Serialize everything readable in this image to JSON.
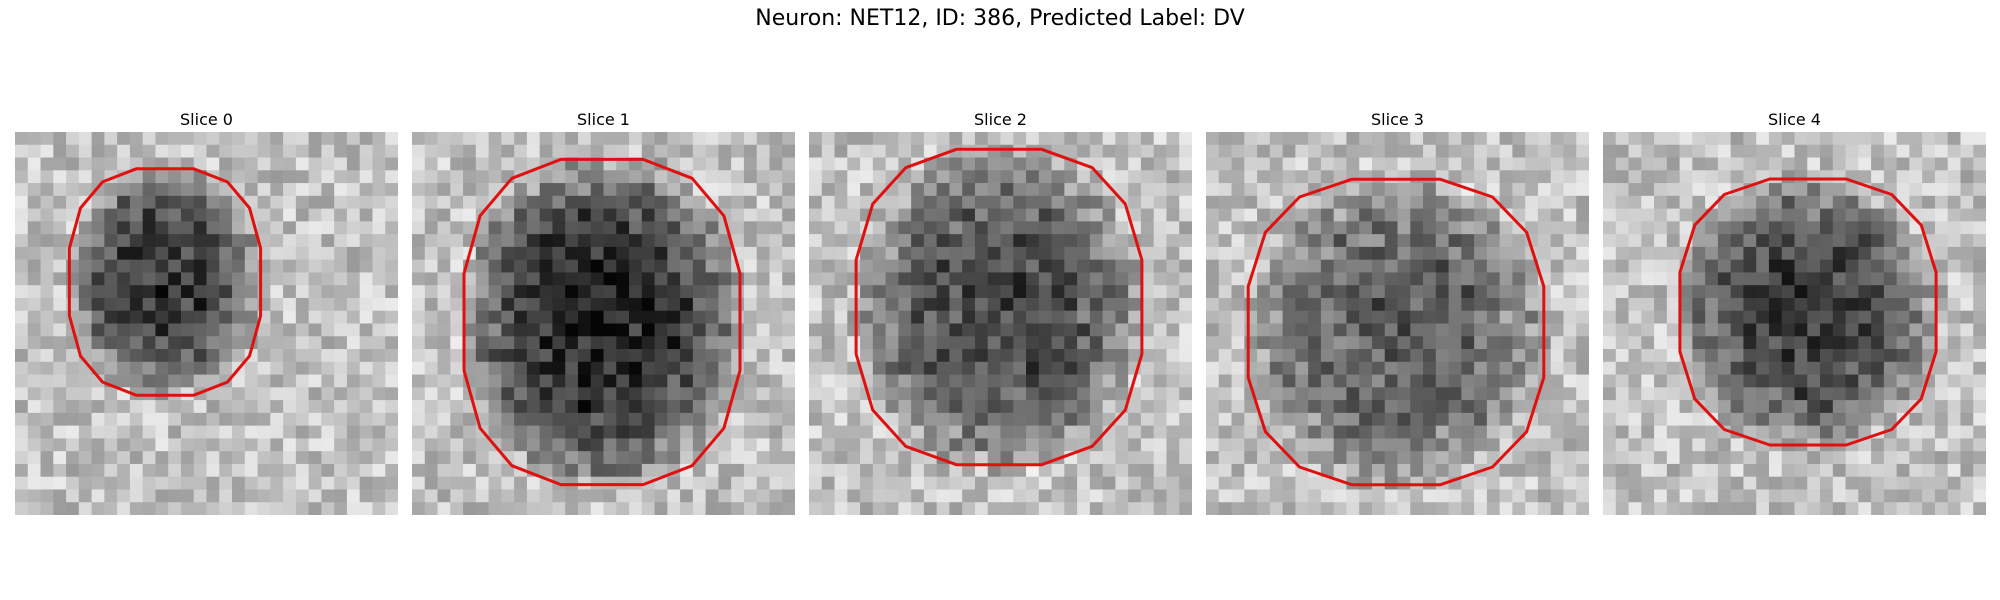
{
  "figure": {
    "title": "Neuron: NET12, ID: 386, Predicted Label: DV",
    "outline_color": "#e01010",
    "colormap": "grayscale",
    "panels": [
      {
        "title": "Slice 0"
      },
      {
        "title": "Slice 1"
      },
      {
        "title": "Slice 2"
      },
      {
        "title": "Slice 3"
      },
      {
        "title": "Slice 4"
      }
    ]
  }
}
